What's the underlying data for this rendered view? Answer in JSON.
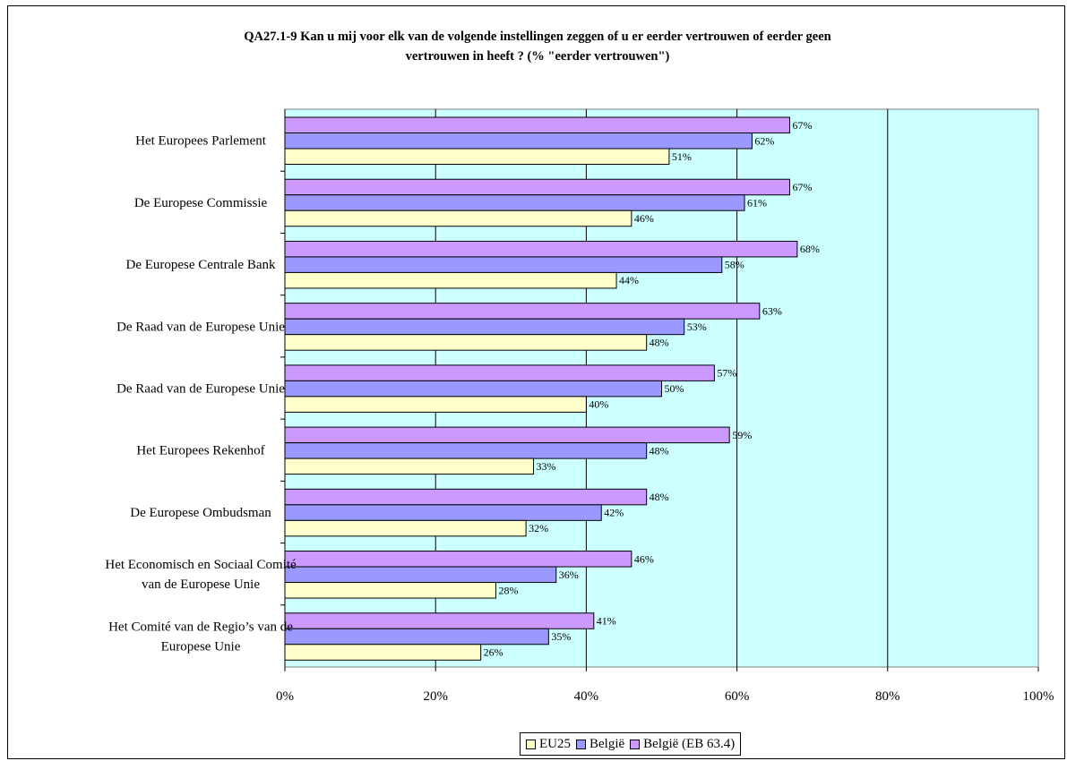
{
  "chart_data": {
    "type": "bar",
    "orientation": "horizontal",
    "title_lines": [
      "QA27.1-9 Kan u mij voor elk van de volgende instellingen zeggen of u er eerder vertrouwen of eerder geen",
      "vertrouwen in heeft ?  (% \"eerder vertrouwen\")"
    ],
    "categories": [
      [
        "Het Europees Parlement"
      ],
      [
        "De Europese Commissie"
      ],
      [
        "De Europese Centrale Bank"
      ],
      [
        "De Raad van de Europese Unie"
      ],
      [
        "De Raad van de Europese Unie"
      ],
      [
        "Het Europees Rekenhof"
      ],
      [
        "De Europese Ombudsman"
      ],
      [
        "Het Economisch en Sociaal Comité",
        "van de Europese Unie"
      ],
      [
        "Het Comité van de Regio’s van de",
        "Europese Unie"
      ]
    ],
    "series": [
      {
        "name": "EU25",
        "color": "#ffffcc",
        "values": [
          51,
          46,
          44,
          48,
          40,
          33,
          32,
          28,
          26
        ],
        "labels": [
          "51%",
          "46%",
          "44%",
          "48%",
          "40%",
          "33%",
          "32%",
          "28%",
          "26%"
        ]
      },
      {
        "name": "België",
        "color": "#9999ff",
        "values": [
          62,
          61,
          58,
          53,
          50,
          48,
          42,
          36,
          35
        ],
        "labels": [
          "62%",
          "61%",
          "58%",
          "53%",
          "50%",
          "48%",
          "42%",
          "36%",
          "35%"
        ]
      },
      {
        "name": "België (EB 63.4)",
        "color": "#cc99ff",
        "values": [
          67,
          67,
          68,
          63,
          57,
          59,
          48,
          46,
          41
        ],
        "labels": [
          "67%",
          "67%",
          "68%",
          "63%",
          "57%",
          "59%",
          "48%",
          "46%",
          "41%"
        ]
      }
    ],
    "xlim": [
      0,
      100
    ],
    "x_ticks": [
      "0%",
      "20%",
      "40%",
      "60%",
      "80%",
      "100%"
    ],
    "plot_background": "#ccffff",
    "grid": true,
    "legend_position": "bottom"
  }
}
